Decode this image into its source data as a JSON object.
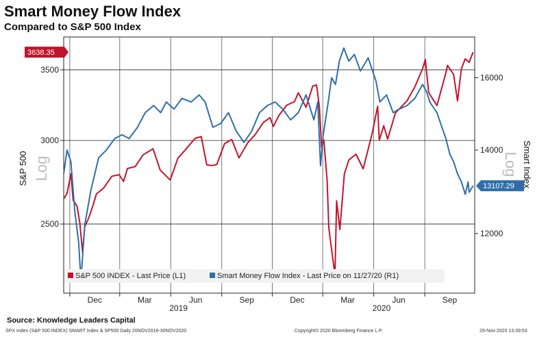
{
  "title": "Smart Money Flow Index",
  "subtitle": "Compared to S&P 500 Index",
  "source": "Source: Knowledge Leaders Capital",
  "footer_left": "SPX Index (S&P 500 INDEX) SMART Index & SP500  Daily 20NOV2018-30NOV2020",
  "footer_center": "Copyright© 2020 Bloomberg Finance L.P.",
  "footer_right": "29-Nov-2020 13:39:53",
  "chart_data": {
    "type": "line",
    "x_range": [
      "2018-11-20",
      "2020-11-30"
    ],
    "x_ticks": [
      "Dec",
      "Mar",
      "Jun",
      "Sep",
      "Dec",
      "Mar",
      "Jun",
      "Sep"
    ],
    "year_labels": [
      "2019",
      "2020"
    ],
    "left_axis": {
      "label": "S&P 500",
      "scale_word": "Log",
      "ticks": [
        2500,
        3000,
        3500
      ],
      "range": [
        2150,
        3760
      ]
    },
    "right_axis": {
      "label": "Smart Index",
      "scale_word": "Log",
      "ticks": [
        "12000",
        "14000",
        "16000"
      ],
      "range": [
        10750,
        17250
      ]
    },
    "series": [
      {
        "name": "S&P 500 INDEX - Last Price (L1)",
        "axis": "left",
        "color": "#c0142c",
        "last_value_label": "3638.35",
        "points": [
          [
            "2018-11-20",
            2641
          ],
          [
            "2018-11-26",
            2673
          ],
          [
            "2018-12-03",
            2790
          ],
          [
            "2018-12-07",
            2633
          ],
          [
            "2018-12-14",
            2600
          ],
          [
            "2018-12-19",
            2507
          ],
          [
            "2018-12-24",
            2351
          ],
          [
            "2018-12-28",
            2486
          ],
          [
            "2019-01-04",
            2532
          ],
          [
            "2019-01-11",
            2596
          ],
          [
            "2019-01-18",
            2670
          ],
          [
            "2019-01-31",
            2704
          ],
          [
            "2019-02-15",
            2775
          ],
          [
            "2019-02-28",
            2784
          ],
          [
            "2019-03-08",
            2743
          ],
          [
            "2019-03-15",
            2822
          ],
          [
            "2019-03-29",
            2834
          ],
          [
            "2019-04-12",
            2907
          ],
          [
            "2019-04-30",
            2946
          ],
          [
            "2019-05-13",
            2812
          ],
          [
            "2019-05-31",
            2752
          ],
          [
            "2019-06-14",
            2887
          ],
          [
            "2019-06-28",
            2942
          ],
          [
            "2019-07-15",
            3014
          ],
          [
            "2019-07-26",
            3025
          ],
          [
            "2019-08-05",
            2844
          ],
          [
            "2019-08-14",
            2840
          ],
          [
            "2019-08-23",
            2847
          ],
          [
            "2019-09-06",
            2979
          ],
          [
            "2019-09-19",
            3006
          ],
          [
            "2019-10-02",
            2888
          ],
          [
            "2019-10-18",
            2986
          ],
          [
            "2019-10-31",
            3038
          ],
          [
            "2019-11-15",
            3120
          ],
          [
            "2019-11-27",
            3153
          ],
          [
            "2019-12-03",
            3093
          ],
          [
            "2019-12-13",
            3168
          ],
          [
            "2019-12-27",
            3240
          ],
          [
            "2020-01-10",
            3265
          ],
          [
            "2020-01-17",
            3329
          ],
          [
            "2020-01-31",
            3225
          ],
          [
            "2020-02-12",
            3379
          ],
          [
            "2020-02-19",
            3386
          ],
          [
            "2020-02-24",
            3225
          ],
          [
            "2020-02-28",
            2954
          ],
          [
            "2020-03-03",
            3003
          ],
          [
            "2020-03-09",
            2746
          ],
          [
            "2020-03-12",
            2480
          ],
          [
            "2020-03-16",
            2386
          ],
          [
            "2020-03-23",
            2237
          ],
          [
            "2020-03-26",
            2630
          ],
          [
            "2020-04-01",
            2470
          ],
          [
            "2020-04-09",
            2789
          ],
          [
            "2020-04-17",
            2874
          ],
          [
            "2020-04-30",
            2912
          ],
          [
            "2020-05-13",
            2820
          ],
          [
            "2020-05-29",
            3044
          ],
          [
            "2020-06-08",
            3232
          ],
          [
            "2020-06-11",
            3002
          ],
          [
            "2020-06-19",
            3098
          ],
          [
            "2020-06-26",
            3009
          ],
          [
            "2020-07-10",
            3185
          ],
          [
            "2020-07-31",
            3271
          ],
          [
            "2020-08-14",
            3372
          ],
          [
            "2020-08-28",
            3508
          ],
          [
            "2020-09-02",
            3580
          ],
          [
            "2020-09-08",
            3331
          ],
          [
            "2020-09-23",
            3237
          ],
          [
            "2020-10-09",
            3477
          ],
          [
            "2020-10-12",
            3534
          ],
          [
            "2020-10-23",
            3465
          ],
          [
            "2020-10-30",
            3270
          ],
          [
            "2020-11-06",
            3509
          ],
          [
            "2020-11-13",
            3585
          ],
          [
            "2020-11-20",
            3557
          ],
          [
            "2020-11-27",
            3638
          ]
        ]
      },
      {
        "name": "Smart Money Flow Index - Last Price on 11/27/20 (R1)",
        "axis": "right",
        "color": "#2f6ea8",
        "last_value_label": "13107.29",
        "points": [
          [
            "2018-11-20",
            13400
          ],
          [
            "2018-11-26",
            14000
          ],
          [
            "2018-12-03",
            13700
          ],
          [
            "2018-12-10",
            12500
          ],
          [
            "2018-12-17",
            11800
          ],
          [
            "2018-12-21",
            11000
          ],
          [
            "2018-12-28",
            12200
          ],
          [
            "2019-01-08",
            13000
          ],
          [
            "2019-01-22",
            13800
          ],
          [
            "2019-02-05",
            14000
          ],
          [
            "2019-02-20",
            14300
          ],
          [
            "2019-03-05",
            14400
          ],
          [
            "2019-03-18",
            14300
          ],
          [
            "2019-04-02",
            14600
          ],
          [
            "2019-04-16",
            15000
          ],
          [
            "2019-05-01",
            15200
          ],
          [
            "2019-05-14",
            15000
          ],
          [
            "2019-05-24",
            15300
          ],
          [
            "2019-06-07",
            15100
          ],
          [
            "2019-06-21",
            15400
          ],
          [
            "2019-07-08",
            15300
          ],
          [
            "2019-07-22",
            15500
          ],
          [
            "2019-08-02",
            15300
          ],
          [
            "2019-08-16",
            14600
          ],
          [
            "2019-08-30",
            14700
          ],
          [
            "2019-09-13",
            15000
          ],
          [
            "2019-09-27",
            14500
          ],
          [
            "2019-10-11",
            14200
          ],
          [
            "2019-10-25",
            14500
          ],
          [
            "2019-11-08",
            15000
          ],
          [
            "2019-11-22",
            15200
          ],
          [
            "2019-12-06",
            15300
          ],
          [
            "2019-12-20",
            15100
          ],
          [
            "2020-01-03",
            14800
          ],
          [
            "2020-01-17",
            15000
          ],
          [
            "2020-01-31",
            15500
          ],
          [
            "2020-02-14",
            14800
          ],
          [
            "2020-02-21",
            15300
          ],
          [
            "2020-02-26",
            13600
          ],
          [
            "2020-03-02",
            14400
          ],
          [
            "2020-03-10",
            15200
          ],
          [
            "2020-03-17",
            16000
          ],
          [
            "2020-03-24",
            15800
          ],
          [
            "2020-03-31",
            16500
          ],
          [
            "2020-04-08",
            16900
          ],
          [
            "2020-04-17",
            16500
          ],
          [
            "2020-04-27",
            16700
          ],
          [
            "2020-05-08",
            16200
          ],
          [
            "2020-05-22",
            16600
          ],
          [
            "2020-06-05",
            15900
          ],
          [
            "2020-06-12",
            15300
          ],
          [
            "2020-06-24",
            15500
          ],
          [
            "2020-07-06",
            15000
          ],
          [
            "2020-07-17",
            15100
          ],
          [
            "2020-07-31",
            15200
          ],
          [
            "2020-08-14",
            15400
          ],
          [
            "2020-08-28",
            15800
          ],
          [
            "2020-09-04",
            15600
          ],
          [
            "2020-09-10",
            15300
          ],
          [
            "2020-09-23",
            15000
          ],
          [
            "2020-10-02",
            14600
          ],
          [
            "2020-10-09",
            14300
          ],
          [
            "2020-10-16",
            13900
          ],
          [
            "2020-10-23",
            13700
          ],
          [
            "2020-10-30",
            13400
          ],
          [
            "2020-11-06",
            13200
          ],
          [
            "2020-11-13",
            12900
          ],
          [
            "2020-11-18",
            13200
          ],
          [
            "2020-11-20",
            12950
          ],
          [
            "2020-11-27",
            13107
          ]
        ]
      }
    ],
    "legend_placement": "bottom",
    "grid": true
  }
}
